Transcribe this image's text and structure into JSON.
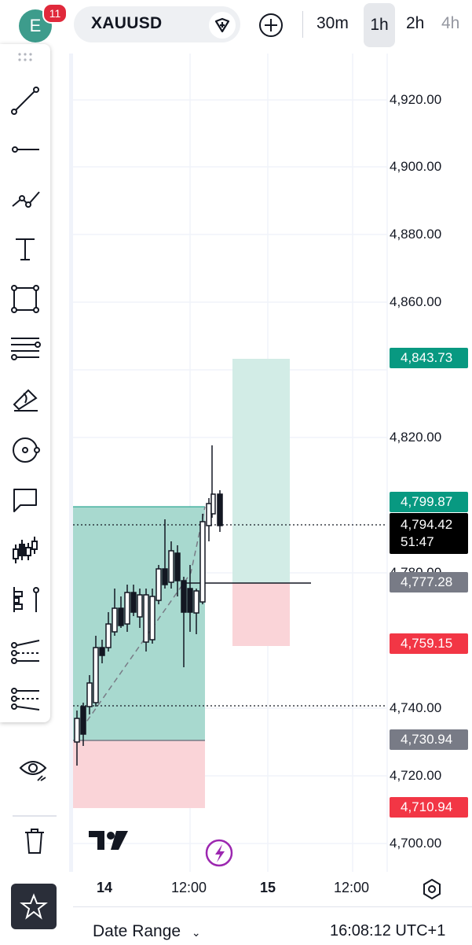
{
  "user": {
    "avatar_letter": "E",
    "notification_count": "11"
  },
  "symbol": {
    "name": "XAUUSD"
  },
  "timeframes": [
    {
      "label": "30m",
      "active": false
    },
    {
      "label": "1h",
      "active": true
    },
    {
      "label": "2h",
      "active": false
    },
    {
      "label": "4h",
      "active": false
    }
  ],
  "price_axis": [
    "4,920.00",
    "4,900.00",
    "4,880.00",
    "4,860.00",
    "4,820.00",
    "4,780.00",
    "4,740.00",
    "4,720.00",
    "4,700.00"
  ],
  "price_badges": {
    "target_long": "4,843.73",
    "target_short_top": "4,799.87",
    "current_price": "4,794.42",
    "countdown": "51:47",
    "entry": "4,777.28",
    "stop_short": "4,759.15",
    "entry_long": "4,730.94",
    "stop_long": "4,710.94"
  },
  "time_axis": [
    "14",
    "12:00",
    "15",
    "12:00"
  ],
  "bottom": {
    "date_range_label": "Date Range",
    "clock": "16:08:12 UTC+1"
  },
  "toolbar_tools": [
    "trend-line",
    "horizontal-ray",
    "path",
    "text",
    "rectangle",
    "fib-retracement",
    "brush",
    "circle",
    "callout",
    "pattern",
    "forecast",
    "long-position",
    "short-position"
  ],
  "colors": {
    "green": "#089981",
    "red": "#f23645",
    "gray": "#787b86",
    "long_fill": "#a8d9cf",
    "short_fill": "#fad4d8"
  }
}
